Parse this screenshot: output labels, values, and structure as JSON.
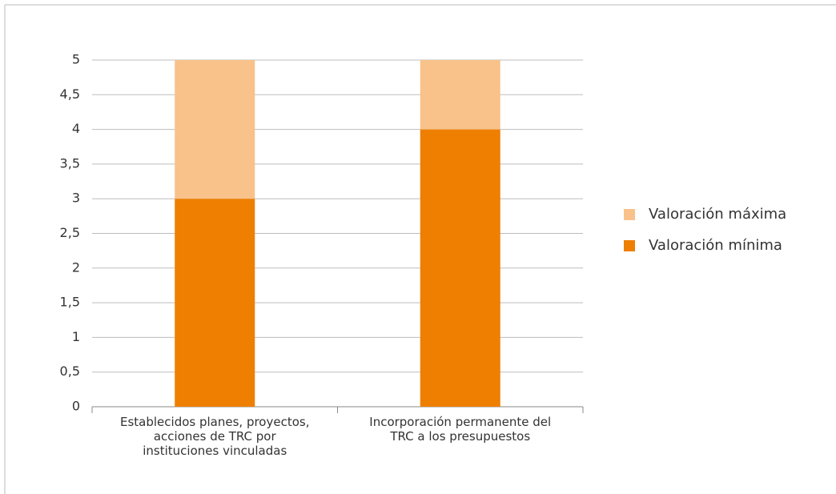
{
  "chart_data": {
    "type": "stacked_bar",
    "categories": [
      "Establecidos planes, proyectos, acciones de TRC por instituciones vinculadas",
      "Incorporación permanente del TRC a los presupuestos"
    ],
    "series": [
      {
        "name": "Valoración mínima",
        "color": "#ee7f00",
        "values": [
          3,
          4
        ]
      },
      {
        "name": "Valoración máxima",
        "color": "#f8c28a",
        "values": [
          2,
          1
        ]
      }
    ],
    "ylim": [
      0,
      5
    ],
    "yticks": [
      0,
      {
        "value": 0.5,
        "label": "0,5"
      },
      1,
      {
        "value": 1.5,
        "label": "1,5"
      },
      2,
      {
        "value": 2.5,
        "label": "2,5"
      },
      3,
      {
        "value": 3.5,
        "label": "3,5"
      },
      4,
      {
        "value": 4.5,
        "label": "4,5"
      },
      5
    ],
    "grid": true,
    "legend": "right"
  }
}
